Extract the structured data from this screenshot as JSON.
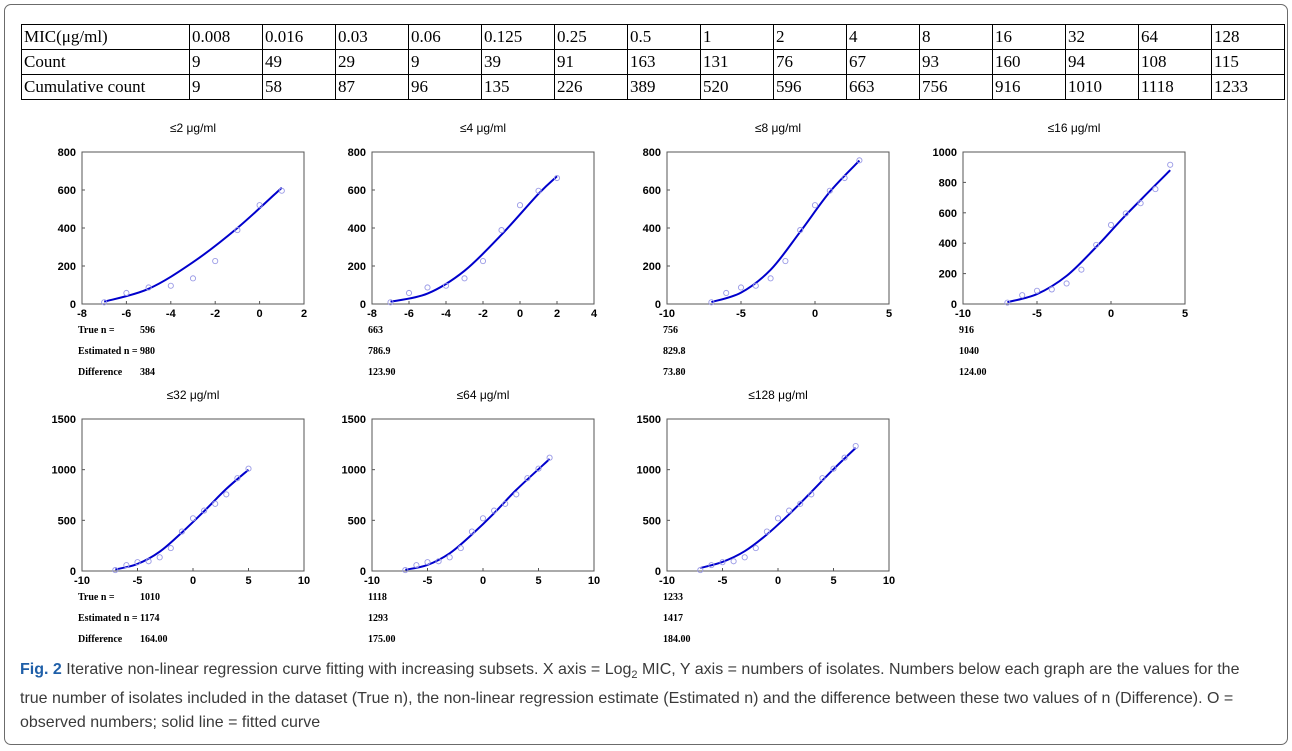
{
  "table": {
    "rows": [
      {
        "label": "MIC(μg/ml)",
        "values": [
          "0.008",
          "0.016",
          "0.03",
          "0.06",
          "0.125",
          "0.25",
          "0.5",
          "1",
          "2",
          "4",
          "8",
          "16",
          "32",
          "64",
          "128"
        ]
      },
      {
        "label": "Count",
        "values": [
          "9",
          "49",
          "29",
          "9",
          "39",
          "91",
          "163",
          "131",
          "76",
          "67",
          "93",
          "160",
          "94",
          "108",
          "115"
        ]
      },
      {
        "label": "Cumulative count",
        "values": [
          "9",
          "58",
          "87",
          "96",
          "135",
          "226",
          "389",
          "520",
          "596",
          "663",
          "756",
          "916",
          "1010",
          "1118",
          "1233"
        ]
      }
    ]
  },
  "stat_labels": {
    "true_n": "True n  =",
    "estimated_n": "Estimated n =",
    "difference": "Difference"
  },
  "chart_data": [
    {
      "type": "scatter",
      "title": "≤2 μg/ml",
      "xlim": [
        -8,
        2
      ],
      "ylim": [
        0,
        800
      ],
      "xticks": [
        -8,
        -6,
        -4,
        -2,
        0,
        2
      ],
      "yticks": [
        0,
        200,
        400,
        600,
        800
      ],
      "x": [
        -7,
        -6,
        -5,
        -4,
        -3,
        -2,
        -1,
        0,
        1
      ],
      "y": [
        9,
        58,
        87,
        96,
        135,
        226,
        389,
        520,
        596
      ],
      "fit": {
        "x": [
          -7,
          -5,
          -3,
          -1,
          1
        ],
        "y": [
          12,
          80,
          220,
          400,
          612
        ]
      },
      "stats": {
        "true_n": "596",
        "estimated_n": "980",
        "difference": "384"
      }
    },
    {
      "type": "scatter",
      "title": "≤4 μg/ml",
      "xlim": [
        -8,
        4
      ],
      "ylim": [
        0,
        800
      ],
      "xticks": [
        -8,
        -6,
        -4,
        -2,
        0,
        2,
        4
      ],
      "yticks": [
        0,
        200,
        400,
        600,
        800
      ],
      "x": [
        -7,
        -6,
        -5,
        -4,
        -3,
        -2,
        -1,
        0,
        1,
        2
      ],
      "y": [
        9,
        58,
        87,
        96,
        135,
        226,
        389,
        520,
        596,
        663
      ],
      "fit": {
        "x": [
          -7,
          -5,
          -3,
          -1,
          1,
          2
        ],
        "y": [
          12,
          55,
          175,
          365,
          580,
          672
        ]
      },
      "stats": {
        "true_n": "663",
        "estimated_n": "786.9",
        "difference": "123.90"
      }
    },
    {
      "type": "scatter",
      "title": "≤8 μg/ml",
      "xlim": [
        -10,
        5
      ],
      "ylim": [
        0,
        800
      ],
      "xticks": [
        -10,
        -5,
        0,
        5
      ],
      "yticks": [
        0,
        200,
        400,
        600,
        800
      ],
      "x": [
        -7,
        -6,
        -5,
        -4,
        -3,
        -2,
        -1,
        0,
        1,
        2,
        3
      ],
      "y": [
        9,
        58,
        87,
        96,
        135,
        226,
        389,
        520,
        596,
        663,
        756
      ],
      "fit": {
        "x": [
          -7,
          -5,
          -3,
          -1,
          1,
          3
        ],
        "y": [
          10,
          60,
          180,
          380,
          590,
          755
        ]
      },
      "stats": {
        "true_n": "756",
        "estimated_n": "829.8",
        "difference": "73.80"
      }
    },
    {
      "type": "scatter",
      "title": "≤16 μg/ml",
      "xlim": [
        -10,
        5
      ],
      "ylim": [
        0,
        1000
      ],
      "xticks": [
        -10,
        -5,
        0,
        5
      ],
      "yticks": [
        0,
        200,
        400,
        600,
        800,
        1000
      ],
      "x": [
        -7,
        -6,
        -5,
        -4,
        -3,
        -2,
        -1,
        0,
        1,
        2,
        3,
        4
      ],
      "y": [
        9,
        58,
        87,
        96,
        135,
        226,
        389,
        520,
        596,
        663,
        756,
        916
      ],
      "fit": {
        "x": [
          -7,
          -5,
          -3,
          -1,
          1,
          4
        ],
        "y": [
          12,
          65,
          185,
          375,
          585,
          880
        ]
      },
      "stats": {
        "true_n": "916",
        "estimated_n": "1040",
        "difference": "124.00"
      }
    },
    {
      "type": "scatter",
      "title": "≤32 μg/ml",
      "xlim": [
        -10,
        10
      ],
      "ylim": [
        0,
        1500
      ],
      "xticks": [
        -10,
        -5,
        0,
        5,
        10
      ],
      "yticks": [
        0,
        500,
        1000,
        1500
      ],
      "x": [
        -7,
        -6,
        -5,
        -4,
        -3,
        -2,
        -1,
        0,
        1,
        2,
        3,
        4,
        5
      ],
      "y": [
        9,
        58,
        87,
        96,
        135,
        226,
        389,
        520,
        596,
        663,
        756,
        916,
        1010
      ],
      "fit": {
        "x": [
          -7,
          -5,
          -3,
          -1,
          1,
          3,
          5
        ],
        "y": [
          15,
          70,
          190,
          380,
          590,
          810,
          1000
        ]
      },
      "stats": {
        "true_n": "1010",
        "estimated_n": "1174",
        "difference": "164.00"
      }
    },
    {
      "type": "scatter",
      "title": "≤64 μg/ml",
      "xlim": [
        -10,
        10
      ],
      "ylim": [
        0,
        1500
      ],
      "xticks": [
        -10,
        -5,
        0,
        5,
        10
      ],
      "yticks": [
        0,
        500,
        1000,
        1500
      ],
      "x": [
        -7,
        -6,
        -5,
        -4,
        -3,
        -2,
        -1,
        0,
        1,
        2,
        3,
        4,
        5,
        6
      ],
      "y": [
        9,
        58,
        87,
        96,
        135,
        226,
        389,
        520,
        596,
        663,
        756,
        916,
        1010,
        1118
      ],
      "fit": {
        "x": [
          -7,
          -5,
          -3,
          -1,
          1,
          3,
          6
        ],
        "y": [
          12,
          60,
          175,
          360,
          570,
          800,
          1105
        ]
      },
      "stats": {
        "true_n": "1118",
        "estimated_n": "1293",
        "difference": "175.00"
      }
    },
    {
      "type": "scatter",
      "title": "≤128 μg/ml",
      "xlim": [
        -10,
        10
      ],
      "ylim": [
        0,
        1500
      ],
      "xticks": [
        -10,
        -5,
        0,
        5,
        10
      ],
      "yticks": [
        0,
        500,
        1000,
        1500
      ],
      "x": [
        -7,
        -6,
        -5,
        -4,
        -3,
        -2,
        -1,
        0,
        1,
        2,
        3,
        4,
        5,
        6,
        7
      ],
      "y": [
        9,
        58,
        87,
        96,
        135,
        226,
        389,
        520,
        596,
        663,
        756,
        916,
        1010,
        1118,
        1233
      ],
      "fit": {
        "x": [
          -7,
          -5,
          -3,
          -1,
          1,
          3,
          5,
          7
        ],
        "y": [
          30,
          90,
          195,
          360,
          560,
          780,
          1005,
          1215
        ]
      },
      "stats": {
        "true_n": "1233",
        "estimated_n": "1417",
        "difference": "184.00"
      }
    }
  ],
  "colors": {
    "marker": "#9a9ae6",
    "fit_line": "#0000cc"
  },
  "caption": {
    "fig_label": "Fig. 2",
    "before_sub": " Iterative non-linear regression curve fitting with increasing subsets. X axis = Log",
    "sub": "2",
    "after_sub": " MIC, Y axis = numbers of isolates. Numbers below each graph are the values for the true number of isolates included in the dataset (True n), the non-linear regression estimate (Estimated n) and the difference between these two values of n (Difference). O = observed numbers; solid line = fitted curve"
  }
}
